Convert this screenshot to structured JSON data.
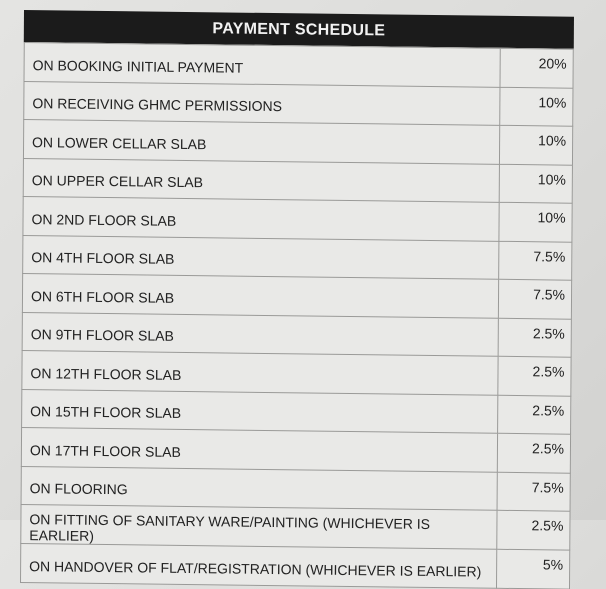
{
  "title": "PAYMENT SCHEDULE",
  "rows": [
    {
      "stage": "ON BOOKING INITIAL PAYMENT",
      "percent": "20%"
    },
    {
      "stage": "ON RECEIVING GHMC PERMISSIONS",
      "percent": "10%"
    },
    {
      "stage": "ON LOWER CELLAR SLAB",
      "percent": "10%"
    },
    {
      "stage": "ON UPPER CELLAR SLAB",
      "percent": "10%"
    },
    {
      "stage": "ON 2ND FLOOR SLAB",
      "percent": "10%"
    },
    {
      "stage": "ON 4TH FLOOR SLAB",
      "percent": "7.5%"
    },
    {
      "stage": "ON 6TH FLOOR SLAB",
      "percent": "7.5%"
    },
    {
      "stage": "ON 9TH FLOOR SLAB",
      "percent": "2.5%"
    },
    {
      "stage": "ON 12TH FLOOR SLAB",
      "percent": "2.5%"
    },
    {
      "stage": "ON 15TH FLOOR SLAB",
      "percent": "2.5%"
    },
    {
      "stage": "ON 17TH FLOOR SLAB",
      "percent": "2.5%"
    },
    {
      "stage": "ON FLOORING",
      "percent": "7.5%"
    },
    {
      "stage": "ON FITTING OF SANITARY WARE/PAINTING (WHICHEVER IS EARLIER)",
      "percent": "2.5%"
    },
    {
      "stage": "ON HANDOVER OF FLAT/REGISTRATION (WHICHEVER IS EARLIER)",
      "percent": "5%"
    }
  ]
}
